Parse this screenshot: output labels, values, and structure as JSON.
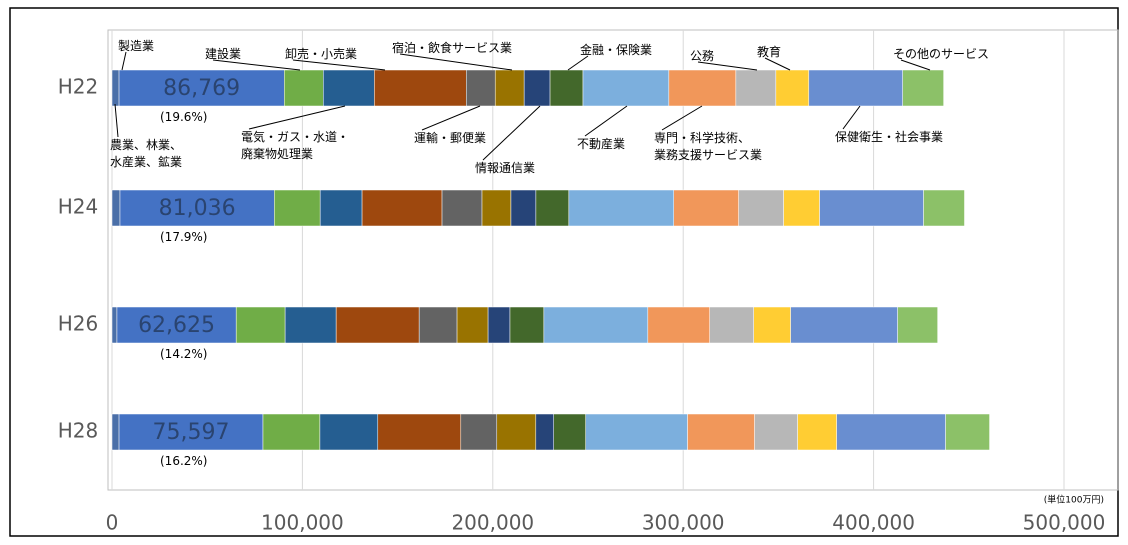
{
  "chart_data": {
    "type": "bar",
    "orientation": "horizontal",
    "stacked": true,
    "categories": [
      "H22",
      "H24",
      "H26",
      "H28"
    ],
    "series": [
      {
        "name": "農業、林業、\n水産業、鉱業",
        "color": "#4a6fa8",
        "values": [
          3700,
          4200,
          2600,
          3700
        ]
      },
      {
        "name": "製造業",
        "color": "#4472c4",
        "values": [
          86769,
          81036,
          62625,
          75597
        ],
        "value_labels": [
          "86,769",
          "81,036",
          "62,625",
          "75,597"
        ]
      },
      {
        "name": "建設業",
        "color": "#70ad47",
        "values": [
          20500,
          24100,
          25700,
          29900
        ]
      },
      {
        "name": "電気・ガス・水道・\n廃棄物処理業",
        "color": "#255e91",
        "values": [
          26800,
          22000,
          26800,
          30400
        ]
      },
      {
        "name": "卸売・小売業",
        "color": "#9e480e",
        "values": [
          48300,
          42000,
          43600,
          43600
        ]
      },
      {
        "name": "運輸・郵便業",
        "color": "#636363",
        "values": [
          15200,
          21000,
          19900,
          18900
        ]
      },
      {
        "name": "宿泊・飲食サービス業",
        "color": "#997300",
        "values": [
          15200,
          15200,
          16300,
          20500
        ]
      },
      {
        "name": "情報通信業",
        "color": "#264478",
        "values": [
          13600,
          13100,
          11500,
          9400
        ]
      },
      {
        "name": "金融・保険業",
        "color": "#43682b",
        "values": [
          17300,
          17300,
          17800,
          16800
        ]
      },
      {
        "name": "不動産業",
        "color": "#7cafdd",
        "values": [
          45100,
          55100,
          54600,
          53500
        ]
      },
      {
        "name": "専門・科学技術、\n業務支援サービス業",
        "color": "#f1975a",
        "values": [
          35200,
          34100,
          32500,
          35200
        ]
      },
      {
        "name": "公務",
        "color": "#b7b7b7",
        "values": [
          21000,
          23600,
          23100,
          22600
        ]
      },
      {
        "name": "教育",
        "color": "#ffcd33",
        "values": [
          17300,
          18900,
          19400,
          20500
        ]
      },
      {
        "name": "保健衛生・社会事業",
        "color": "#698ed0",
        "values": [
          49300,
          54600,
          56200,
          57200
        ]
      },
      {
        "name": "その他のサービス",
        "color": "#8cc168",
        "values": [
          21500,
          21500,
          21000,
          23100
        ]
      }
    ],
    "annotations": [
      "(19.6%)",
      "(17.9%)",
      "(14.2%)",
      "(16.2%)"
    ],
    "unit_label": "(単位100万円)",
    "xlim": [
      0,
      500000
    ],
    "xticks": [
      0,
      {
        "value": 100000,
        "label": "100,000"
      },
      {
        "value": 200000,
        "label": "200,000"
      },
      {
        "value": 300000,
        "label": "300,000"
      },
      {
        "value": 400000,
        "label": "400,000"
      },
      {
        "value": 500000,
        "label": "500,000"
      }
    ],
    "grid": true
  }
}
